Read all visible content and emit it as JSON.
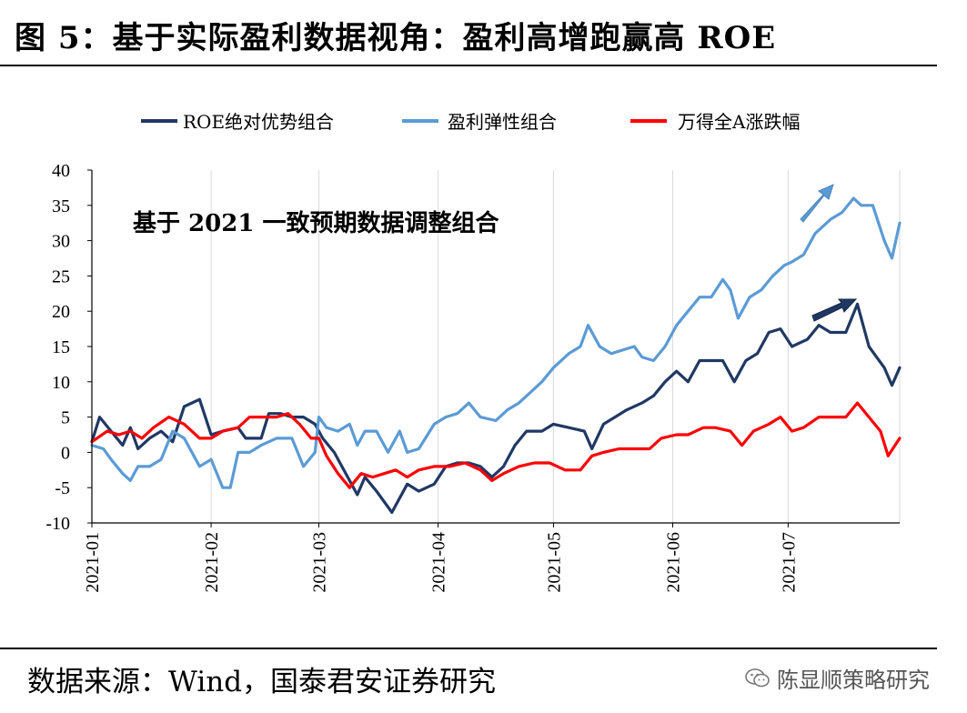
{
  "header": {
    "title": "图 5：基于实际盈利数据视角：盈利高增跑赢高 ROE"
  },
  "footer": {
    "source": "数据来源：Wind，国泰君安证券研究",
    "watermark": "陈显顺策略研究"
  },
  "colors": {
    "roe": "#203864",
    "profit": "#5B9BD5",
    "market": "#FF0000",
    "axis": "#000000",
    "grid": "#d9d9d9"
  },
  "chart_data": {
    "type": "line",
    "annotation": "基于 2021 一致预期数据调整组合",
    "ylim": [
      -10,
      40
    ],
    "yticks": [
      -10,
      -5,
      0,
      5,
      10,
      15,
      20,
      25,
      30,
      35,
      40
    ],
    "xlim": [
      "2021-01-01",
      "2021-07-30"
    ],
    "xticks": [
      "2021-01",
      "2021-02",
      "2021-03",
      "2021-04",
      "2021-05",
      "2021-06",
      "2021-07"
    ],
    "xtick_dates": [
      "2021-01-01",
      "2021-02-01",
      "2021-03-01",
      "2021-04-01",
      "2021-05-01",
      "2021-06-01",
      "2021-07-01"
    ],
    "grid": "vertical",
    "legend": "top",
    "series": [
      {
        "name": "ROE绝对优势组合",
        "data": [
          [
            "2021-01-01",
            1.5
          ],
          [
            "2021-01-03",
            5
          ],
          [
            "2021-01-06",
            3
          ],
          [
            "2021-01-09",
            1
          ],
          [
            "2021-01-11",
            3.5
          ],
          [
            "2021-01-13",
            0.5
          ],
          [
            "2021-01-16",
            2
          ],
          [
            "2021-01-19",
            3
          ],
          [
            "2021-01-22",
            1.5
          ],
          [
            "2021-01-25",
            6.5
          ],
          [
            "2021-01-29",
            7.5
          ],
          [
            "2021-02-01",
            2.5
          ],
          [
            "2021-02-04",
            3
          ],
          [
            "2021-02-08",
            3.5
          ],
          [
            "2021-02-10",
            2
          ],
          [
            "2021-02-14",
            2
          ],
          [
            "2021-02-16",
            5.5
          ],
          [
            "2021-02-19",
            5.5
          ],
          [
            "2021-02-22",
            5
          ],
          [
            "2021-02-25",
            5
          ],
          [
            "2021-02-28",
            4
          ],
          [
            "2021-03-02",
            2
          ],
          [
            "2021-03-05",
            0
          ],
          [
            "2021-03-08",
            -3
          ],
          [
            "2021-03-11",
            -6
          ],
          [
            "2021-03-13",
            -3.5
          ],
          [
            "2021-03-16",
            -5.5
          ],
          [
            "2021-03-20",
            -8.5
          ],
          [
            "2021-03-24",
            -4.5
          ],
          [
            "2021-03-27",
            -5.5
          ],
          [
            "2021-03-31",
            -4.5
          ],
          [
            "2021-04-03",
            -2
          ],
          [
            "2021-04-06",
            -1.5
          ],
          [
            "2021-04-09",
            -1.5
          ],
          [
            "2021-04-12",
            -2
          ],
          [
            "2021-04-15",
            -3.5
          ],
          [
            "2021-04-18",
            -2
          ],
          [
            "2021-04-21",
            1
          ],
          [
            "2021-04-24",
            3
          ],
          [
            "2021-04-28",
            3
          ],
          [
            "2021-05-01",
            4
          ],
          [
            "2021-05-05",
            3.5
          ],
          [
            "2021-05-09",
            3
          ],
          [
            "2021-05-11",
            0.5
          ],
          [
            "2021-05-14",
            4
          ],
          [
            "2021-05-17",
            5
          ],
          [
            "2021-05-20",
            6
          ],
          [
            "2021-05-24",
            7
          ],
          [
            "2021-05-27",
            8
          ],
          [
            "2021-05-30",
            10
          ],
          [
            "2021-06-02",
            11.5
          ],
          [
            "2021-06-05",
            10
          ],
          [
            "2021-06-08",
            13
          ],
          [
            "2021-06-11",
            13
          ],
          [
            "2021-06-14",
            13
          ],
          [
            "2021-06-17",
            10
          ],
          [
            "2021-06-20",
            13
          ],
          [
            "2021-06-23",
            14
          ],
          [
            "2021-06-26",
            17
          ],
          [
            "2021-06-29",
            17.5
          ],
          [
            "2021-07-02",
            15
          ],
          [
            "2021-07-06",
            16
          ],
          [
            "2021-07-09",
            18
          ],
          [
            "2021-07-12",
            17
          ],
          [
            "2021-07-16",
            17
          ],
          [
            "2021-07-19",
            21
          ],
          [
            "2021-07-22",
            15
          ],
          [
            "2021-07-26",
            12
          ],
          [
            "2021-07-28",
            9.5
          ],
          [
            "2021-07-30",
            12
          ]
        ]
      },
      {
        "name": "盈利弹性组合",
        "data": [
          [
            "2021-01-01",
            1
          ],
          [
            "2021-01-04",
            0.5
          ],
          [
            "2021-01-06",
            -1
          ],
          [
            "2021-01-09",
            -3
          ],
          [
            "2021-01-11",
            -4
          ],
          [
            "2021-01-13",
            -2
          ],
          [
            "2021-01-16",
            -2
          ],
          [
            "2021-01-19",
            -1
          ],
          [
            "2021-01-22",
            3
          ],
          [
            "2021-01-25",
            2
          ],
          [
            "2021-01-29",
            -2
          ],
          [
            "2021-02-01",
            -1
          ],
          [
            "2021-02-04",
            -5
          ],
          [
            "2021-02-06",
            -5
          ],
          [
            "2021-02-08",
            0
          ],
          [
            "2021-02-11",
            0
          ],
          [
            "2021-02-14",
            1
          ],
          [
            "2021-02-18",
            2
          ],
          [
            "2021-02-22",
            2
          ],
          [
            "2021-02-25",
            -2
          ],
          [
            "2021-02-28",
            0
          ],
          [
            "2021-03-01",
            5
          ],
          [
            "2021-03-03",
            3.5
          ],
          [
            "2021-03-06",
            3
          ],
          [
            "2021-03-09",
            4
          ],
          [
            "2021-03-11",
            1
          ],
          [
            "2021-03-13",
            3
          ],
          [
            "2021-03-16",
            3
          ],
          [
            "2021-03-19",
            0
          ],
          [
            "2021-03-22",
            3
          ],
          [
            "2021-03-24",
            0
          ],
          [
            "2021-03-27",
            0.5
          ],
          [
            "2021-03-31",
            4
          ],
          [
            "2021-04-03",
            5
          ],
          [
            "2021-04-06",
            5.5
          ],
          [
            "2021-04-09",
            7
          ],
          [
            "2021-04-12",
            5
          ],
          [
            "2021-04-16",
            4.5
          ],
          [
            "2021-04-19",
            6
          ],
          [
            "2021-04-22",
            7
          ],
          [
            "2021-04-25",
            8.5
          ],
          [
            "2021-04-28",
            10
          ],
          [
            "2021-05-01",
            12
          ],
          [
            "2021-05-05",
            14
          ],
          [
            "2021-05-08",
            15
          ],
          [
            "2021-05-10",
            18
          ],
          [
            "2021-05-13",
            15
          ],
          [
            "2021-05-16",
            14
          ],
          [
            "2021-05-19",
            14.5
          ],
          [
            "2021-05-22",
            15
          ],
          [
            "2021-05-24",
            13.5
          ],
          [
            "2021-05-27",
            13
          ],
          [
            "2021-05-30",
            15
          ],
          [
            "2021-06-02",
            18
          ],
          [
            "2021-06-05",
            20
          ],
          [
            "2021-06-08",
            22
          ],
          [
            "2021-06-11",
            22
          ],
          [
            "2021-06-14",
            24.5
          ],
          [
            "2021-06-16",
            23
          ],
          [
            "2021-06-18",
            19
          ],
          [
            "2021-06-21",
            22
          ],
          [
            "2021-06-24",
            23
          ],
          [
            "2021-06-27",
            25
          ],
          [
            "2021-06-30",
            26.5
          ],
          [
            "2021-07-02",
            27
          ],
          [
            "2021-07-05",
            28
          ],
          [
            "2021-07-08",
            31
          ],
          [
            "2021-07-12",
            33
          ],
          [
            "2021-07-15",
            34
          ],
          [
            "2021-07-18",
            36
          ],
          [
            "2021-07-20",
            35
          ],
          [
            "2021-07-23",
            35
          ],
          [
            "2021-07-26",
            30
          ],
          [
            "2021-07-28",
            27.5
          ],
          [
            "2021-07-30",
            32.5
          ]
        ]
      },
      {
        "name": "万得全A涨跌幅",
        "data": [
          [
            "2021-01-01",
            1.5
          ],
          [
            "2021-01-05",
            3
          ],
          [
            "2021-01-08",
            2.5
          ],
          [
            "2021-01-11",
            3
          ],
          [
            "2021-01-14",
            2
          ],
          [
            "2021-01-17",
            3.5
          ],
          [
            "2021-01-21",
            5
          ],
          [
            "2021-01-25",
            4
          ],
          [
            "2021-01-29",
            2
          ],
          [
            "2021-02-01",
            2
          ],
          [
            "2021-02-04",
            3
          ],
          [
            "2021-02-08",
            3.5
          ],
          [
            "2021-02-11",
            5
          ],
          [
            "2021-02-14",
            5
          ],
          [
            "2021-02-18",
            5
          ],
          [
            "2021-02-21",
            5.5
          ],
          [
            "2021-02-24",
            4
          ],
          [
            "2021-02-27",
            2
          ],
          [
            "2021-03-01",
            2
          ],
          [
            "2021-03-03",
            -0.5
          ],
          [
            "2021-03-06",
            -3
          ],
          [
            "2021-03-09",
            -5
          ],
          [
            "2021-03-12",
            -3
          ],
          [
            "2021-03-15",
            -3.5
          ],
          [
            "2021-03-18",
            -3
          ],
          [
            "2021-03-21",
            -2.5
          ],
          [
            "2021-03-24",
            -3.5
          ],
          [
            "2021-03-27",
            -2.5
          ],
          [
            "2021-03-31",
            -2
          ],
          [
            "2021-04-04",
            -2
          ],
          [
            "2021-04-08",
            -1.5
          ],
          [
            "2021-04-12",
            -2.5
          ],
          [
            "2021-04-15",
            -4
          ],
          [
            "2021-04-18",
            -3
          ],
          [
            "2021-04-22",
            -2
          ],
          [
            "2021-04-26",
            -1.5
          ],
          [
            "2021-04-30",
            -1.5
          ],
          [
            "2021-05-04",
            -2.5
          ],
          [
            "2021-05-08",
            -2.5
          ],
          [
            "2021-05-11",
            -0.5
          ],
          [
            "2021-05-14",
            0
          ],
          [
            "2021-05-18",
            0.5
          ],
          [
            "2021-05-22",
            0.5
          ],
          [
            "2021-05-26",
            0.5
          ],
          [
            "2021-05-29",
            2
          ],
          [
            "2021-06-02",
            2.5
          ],
          [
            "2021-06-05",
            2.5
          ],
          [
            "2021-06-09",
            3.5
          ],
          [
            "2021-06-12",
            3.5
          ],
          [
            "2021-06-16",
            3
          ],
          [
            "2021-06-19",
            1
          ],
          [
            "2021-06-22",
            3
          ],
          [
            "2021-06-26",
            4
          ],
          [
            "2021-06-29",
            5
          ],
          [
            "2021-07-02",
            3
          ],
          [
            "2021-07-05",
            3.5
          ],
          [
            "2021-07-09",
            5
          ],
          [
            "2021-07-12",
            5
          ],
          [
            "2021-07-16",
            5
          ],
          [
            "2021-07-19",
            7
          ],
          [
            "2021-07-22",
            5
          ],
          [
            "2021-07-25",
            3
          ],
          [
            "2021-07-27",
            -0.5
          ],
          [
            "2021-07-30",
            2
          ]
        ]
      }
    ]
  }
}
